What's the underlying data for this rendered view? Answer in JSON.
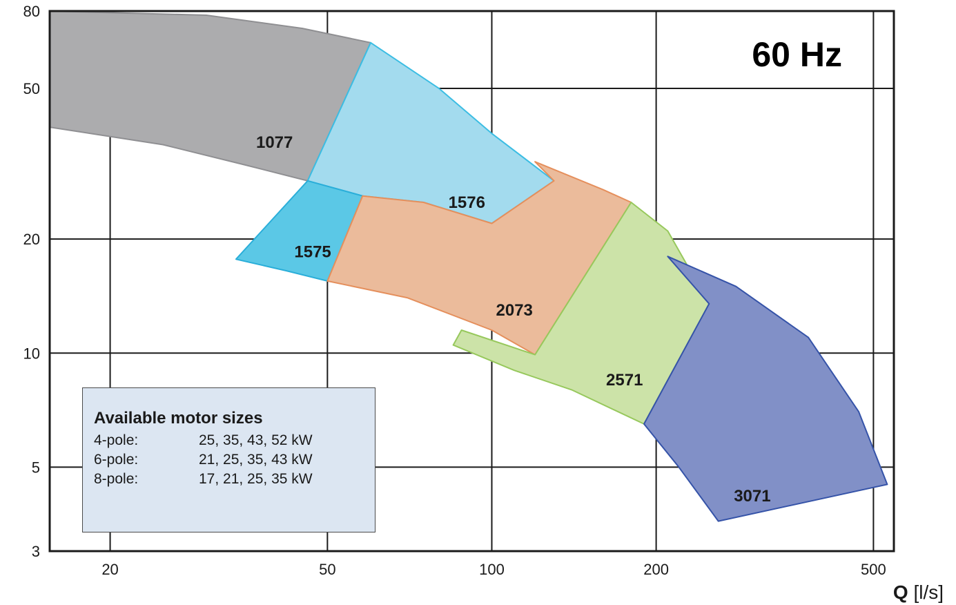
{
  "chart_data": {
    "type": "area",
    "title": "60 Hz",
    "xlabel": "Q",
    "xlabel_unit": "[l/s]",
    "ylabel": "",
    "xscale": "log",
    "yscale": "log",
    "xlim": [
      15.5,
      545
    ],
    "ylim": [
      3,
      80
    ],
    "xticks": [
      20,
      50,
      100,
      200,
      500
    ],
    "xtick_labels": [
      "20",
      "50",
      "100",
      "200",
      "500"
    ],
    "yticks": [
      3,
      5,
      10,
      20,
      50,
      80
    ],
    "ytick_labels": [
      "3",
      "5",
      "10",
      "20",
      "50",
      "80"
    ],
    "grid": true,
    "series": [
      {
        "name": "1077",
        "color": "#acacae",
        "stroke": "#8f8f92",
        "points": [
          [
            15.5,
            80
          ],
          [
            30,
            78
          ],
          [
            45,
            72
          ],
          [
            60,
            66
          ],
          [
            46,
            28.5
          ],
          [
            35,
            31.5
          ],
          [
            25,
            35.5
          ],
          [
            15.5,
            39.5
          ]
        ],
        "label_at": [
          40,
          36
        ]
      },
      {
        "name": "1576",
        "color": "#a3dbee",
        "stroke": "#3bbde3",
        "points": [
          [
            60,
            66
          ],
          [
            80,
            50
          ],
          [
            100,
            38
          ],
          [
            130,
            28.5
          ],
          [
            100,
            22
          ],
          [
            75,
            25
          ],
          [
            58,
            26
          ],
          [
            46,
            28.5
          ]
        ],
        "label_at": [
          90,
          25
        ]
      },
      {
        "name": "1575",
        "color": "#5bc8e6",
        "stroke": "#2aaed9",
        "points": [
          [
            46,
            28.5
          ],
          [
            58,
            26
          ],
          [
            50,
            15.5
          ],
          [
            42,
            16.5
          ],
          [
            34,
            17.7
          ]
        ],
        "label_at": [
          47,
          18.5
        ]
      },
      {
        "name": "2073",
        "color": "#ebbb9b",
        "stroke": "#e58f5c",
        "points": [
          [
            58,
            26
          ],
          [
            75,
            25
          ],
          [
            100,
            22
          ],
          [
            130,
            28.5
          ],
          [
            120,
            32
          ],
          [
            160,
            27
          ],
          [
            180,
            25
          ],
          [
            120,
            9.9
          ],
          [
            100,
            11.5
          ],
          [
            70,
            14
          ],
          [
            50,
            15.5
          ]
        ],
        "label_at": [
          110,
          13
        ]
      },
      {
        "name": "2571",
        "color": "#cce3a8",
        "stroke": "#97c85c",
        "points": [
          [
            180,
            25
          ],
          [
            210,
            21
          ],
          [
            250,
            13.5
          ],
          [
            190,
            6.5
          ],
          [
            140,
            8
          ],
          [
            110,
            9
          ],
          [
            85,
            10.5
          ],
          [
            88,
            11.5
          ],
          [
            120,
            9.9
          ]
        ],
        "label_at": [
          175,
          8.5
        ]
      },
      {
        "name": "3071",
        "color": "#8190c7",
        "stroke": "#3553a8",
        "points": [
          [
            210,
            18
          ],
          [
            280,
            15
          ],
          [
            380,
            11
          ],
          [
            470,
            7
          ],
          [
            530,
            4.5
          ],
          [
            260,
            3.6
          ],
          [
            220,
            5
          ],
          [
            190,
            6.5
          ],
          [
            250,
            13.5
          ]
        ],
        "label_at": [
          300,
          4.2
        ]
      }
    ]
  },
  "motor_sizes": {
    "title": "Available motor sizes",
    "rows": [
      {
        "pole": "4-pole:",
        "sizes": "25, 35, 43, 52 kW"
      },
      {
        "pole": "6-pole:",
        "sizes": "21, 25, 35, 43 kW"
      },
      {
        "pole": "8-pole:",
        "sizes": "17, 21, 25, 35 kW"
      }
    ]
  }
}
